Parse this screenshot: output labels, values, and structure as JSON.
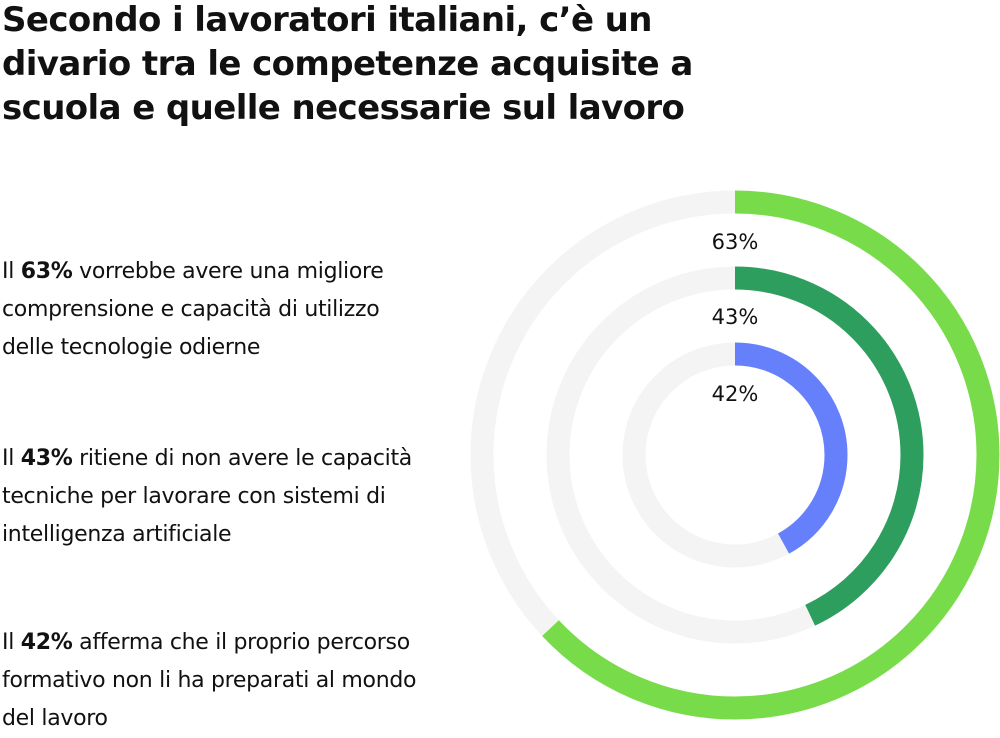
{
  "title": "Secondo i lavoratori italiani, c’è un divario tra le competenze acquisite a scuola e quelle necessarie sul lavoro",
  "stats": [
    {
      "prefix": "Il ",
      "value": "63%",
      "text": " vorrebbe avere una migliore comprensione e capacità di utilizzo delle tecnologie odierne"
    },
    {
      "prefix": "Il ",
      "value": "43%",
      "text": " ritiene di non avere le capacità tecniche per lavorare con sistemi di intelligenza artificiale"
    },
    {
      "prefix": "Il ",
      "value": "42%",
      "text": " afferma che il proprio percorso formativo non li ha preparati al mondo del lavoro"
    }
  ],
  "rings": [
    {
      "label": "63%",
      "value": 63,
      "color": "#78dc4a"
    },
    {
      "label": "43%",
      "value": 43,
      "color": "#2e9e5e"
    },
    {
      "label": "42%",
      "value": 42,
      "color": "#6680fc"
    }
  ],
  "track_color": "#f4f4f4",
  "chart_data": {
    "type": "radial-bar",
    "title": "Secondo i lavoratori italiani, c’è un divario tra le competenze acquisite a scuola e quelle necessarie sul lavoro",
    "categories": [
      "Vorrebbe avere una migliore comprensione e capacità di utilizzo delle tecnologie odierne",
      "Ritiene di non avere le capacità tecniche per lavorare con sistemi di intelligenza artificiale",
      "Afferma che il proprio percorso formativo non li ha preparati al mondo del lavoro"
    ],
    "values": [
      63,
      43,
      42
    ],
    "unit": "%",
    "range": [
      0,
      100
    ],
    "colors": [
      "#78dc4a",
      "#2e9e5e",
      "#6680fc"
    ]
  }
}
